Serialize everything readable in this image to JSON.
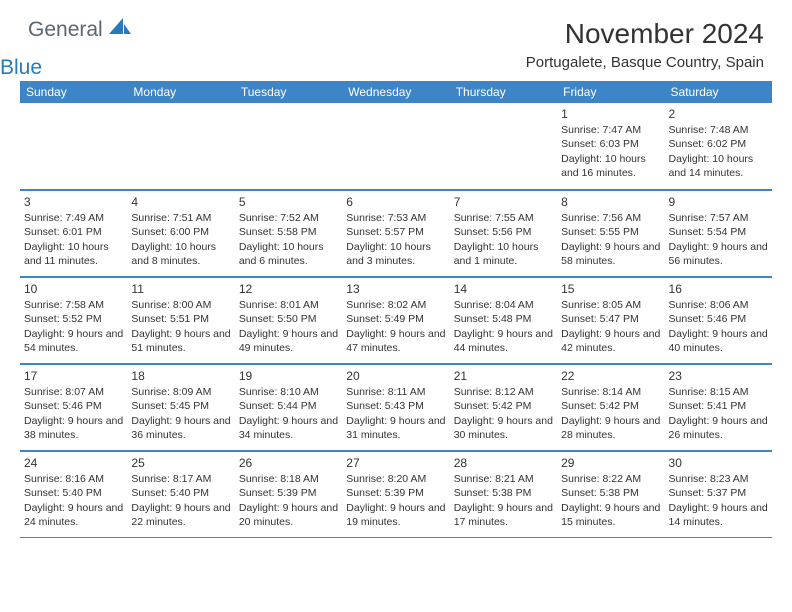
{
  "brand": {
    "text_general": "General",
    "text_blue": "Blue",
    "logo_color": "#2a7ab8",
    "text_gray": "#5b6670"
  },
  "title": "November 2024",
  "location": "Portugalete, Basque Country, Spain",
  "header_bg": "#3d85c6",
  "header_text_color": "#ffffff",
  "border_color": "#3d85c6",
  "days_of_week": [
    "Sunday",
    "Monday",
    "Tuesday",
    "Wednesday",
    "Thursday",
    "Friday",
    "Saturday"
  ],
  "weeks": [
    [
      {
        "empty": true
      },
      {
        "empty": true
      },
      {
        "empty": true
      },
      {
        "empty": true
      },
      {
        "empty": true
      },
      {
        "num": "1",
        "sunrise": "Sunrise: 7:47 AM",
        "sunset": "Sunset: 6:03 PM",
        "daylight": "Daylight: 10 hours and 16 minutes."
      },
      {
        "num": "2",
        "sunrise": "Sunrise: 7:48 AM",
        "sunset": "Sunset: 6:02 PM",
        "daylight": "Daylight: 10 hours and 14 minutes."
      }
    ],
    [
      {
        "num": "3",
        "sunrise": "Sunrise: 7:49 AM",
        "sunset": "Sunset: 6:01 PM",
        "daylight": "Daylight: 10 hours and 11 minutes."
      },
      {
        "num": "4",
        "sunrise": "Sunrise: 7:51 AM",
        "sunset": "Sunset: 6:00 PM",
        "daylight": "Daylight: 10 hours and 8 minutes."
      },
      {
        "num": "5",
        "sunrise": "Sunrise: 7:52 AM",
        "sunset": "Sunset: 5:58 PM",
        "daylight": "Daylight: 10 hours and 6 minutes."
      },
      {
        "num": "6",
        "sunrise": "Sunrise: 7:53 AM",
        "sunset": "Sunset: 5:57 PM",
        "daylight": "Daylight: 10 hours and 3 minutes."
      },
      {
        "num": "7",
        "sunrise": "Sunrise: 7:55 AM",
        "sunset": "Sunset: 5:56 PM",
        "daylight": "Daylight: 10 hours and 1 minute."
      },
      {
        "num": "8",
        "sunrise": "Sunrise: 7:56 AM",
        "sunset": "Sunset: 5:55 PM",
        "daylight": "Daylight: 9 hours and 58 minutes."
      },
      {
        "num": "9",
        "sunrise": "Sunrise: 7:57 AM",
        "sunset": "Sunset: 5:54 PM",
        "daylight": "Daylight: 9 hours and 56 minutes."
      }
    ],
    [
      {
        "num": "10",
        "sunrise": "Sunrise: 7:58 AM",
        "sunset": "Sunset: 5:52 PM",
        "daylight": "Daylight: 9 hours and 54 minutes."
      },
      {
        "num": "11",
        "sunrise": "Sunrise: 8:00 AM",
        "sunset": "Sunset: 5:51 PM",
        "daylight": "Daylight: 9 hours and 51 minutes."
      },
      {
        "num": "12",
        "sunrise": "Sunrise: 8:01 AM",
        "sunset": "Sunset: 5:50 PM",
        "daylight": "Daylight: 9 hours and 49 minutes."
      },
      {
        "num": "13",
        "sunrise": "Sunrise: 8:02 AM",
        "sunset": "Sunset: 5:49 PM",
        "daylight": "Daylight: 9 hours and 47 minutes."
      },
      {
        "num": "14",
        "sunrise": "Sunrise: 8:04 AM",
        "sunset": "Sunset: 5:48 PM",
        "daylight": "Daylight: 9 hours and 44 minutes."
      },
      {
        "num": "15",
        "sunrise": "Sunrise: 8:05 AM",
        "sunset": "Sunset: 5:47 PM",
        "daylight": "Daylight: 9 hours and 42 minutes."
      },
      {
        "num": "16",
        "sunrise": "Sunrise: 8:06 AM",
        "sunset": "Sunset: 5:46 PM",
        "daylight": "Daylight: 9 hours and 40 minutes."
      }
    ],
    [
      {
        "num": "17",
        "sunrise": "Sunrise: 8:07 AM",
        "sunset": "Sunset: 5:46 PM",
        "daylight": "Daylight: 9 hours and 38 minutes."
      },
      {
        "num": "18",
        "sunrise": "Sunrise: 8:09 AM",
        "sunset": "Sunset: 5:45 PM",
        "daylight": "Daylight: 9 hours and 36 minutes."
      },
      {
        "num": "19",
        "sunrise": "Sunrise: 8:10 AM",
        "sunset": "Sunset: 5:44 PM",
        "daylight": "Daylight: 9 hours and 34 minutes."
      },
      {
        "num": "20",
        "sunrise": "Sunrise: 8:11 AM",
        "sunset": "Sunset: 5:43 PM",
        "daylight": "Daylight: 9 hours and 31 minutes."
      },
      {
        "num": "21",
        "sunrise": "Sunrise: 8:12 AM",
        "sunset": "Sunset: 5:42 PM",
        "daylight": "Daylight: 9 hours and 30 minutes."
      },
      {
        "num": "22",
        "sunrise": "Sunrise: 8:14 AM",
        "sunset": "Sunset: 5:42 PM",
        "daylight": "Daylight: 9 hours and 28 minutes."
      },
      {
        "num": "23",
        "sunrise": "Sunrise: 8:15 AM",
        "sunset": "Sunset: 5:41 PM",
        "daylight": "Daylight: 9 hours and 26 minutes."
      }
    ],
    [
      {
        "num": "24",
        "sunrise": "Sunrise: 8:16 AM",
        "sunset": "Sunset: 5:40 PM",
        "daylight": "Daylight: 9 hours and 24 minutes."
      },
      {
        "num": "25",
        "sunrise": "Sunrise: 8:17 AM",
        "sunset": "Sunset: 5:40 PM",
        "daylight": "Daylight: 9 hours and 22 minutes."
      },
      {
        "num": "26",
        "sunrise": "Sunrise: 8:18 AM",
        "sunset": "Sunset: 5:39 PM",
        "daylight": "Daylight: 9 hours and 20 minutes."
      },
      {
        "num": "27",
        "sunrise": "Sunrise: 8:20 AM",
        "sunset": "Sunset: 5:39 PM",
        "daylight": "Daylight: 9 hours and 19 minutes."
      },
      {
        "num": "28",
        "sunrise": "Sunrise: 8:21 AM",
        "sunset": "Sunset: 5:38 PM",
        "daylight": "Daylight: 9 hours and 17 minutes."
      },
      {
        "num": "29",
        "sunrise": "Sunrise: 8:22 AM",
        "sunset": "Sunset: 5:38 PM",
        "daylight": "Daylight: 9 hours and 15 minutes."
      },
      {
        "num": "30",
        "sunrise": "Sunrise: 8:23 AM",
        "sunset": "Sunset: 5:37 PM",
        "daylight": "Daylight: 9 hours and 14 minutes."
      }
    ]
  ]
}
